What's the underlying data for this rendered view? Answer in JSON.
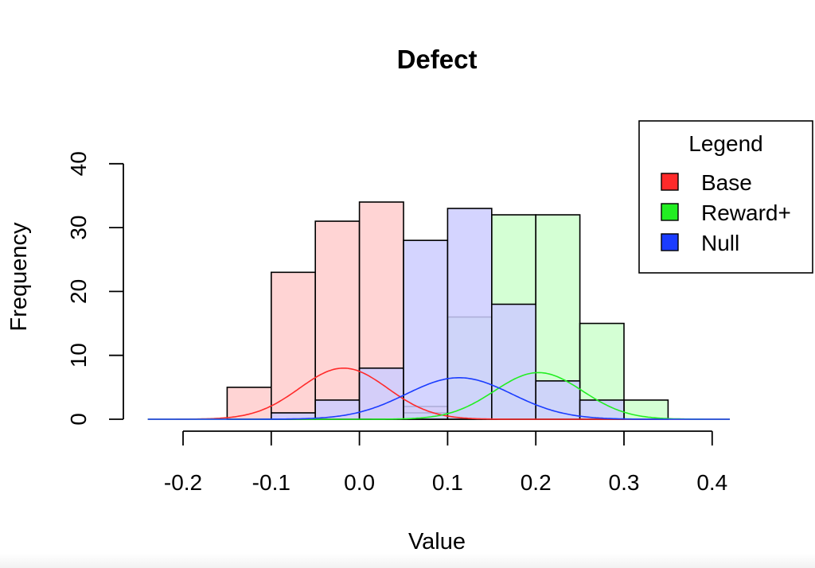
{
  "chart_data": {
    "type": "bar",
    "title": "Defect",
    "xlabel": "Value",
    "ylabel": "Frequency",
    "xlim": [
      -0.24,
      0.42
    ],
    "ylim": [
      0,
      40
    ],
    "x_ticks": [
      -0.2,
      -0.1,
      0.0,
      0.1,
      0.2,
      0.3,
      0.4
    ],
    "x_tick_labels": [
      "-0.2",
      "-0.1",
      "0.0",
      "0.1",
      "0.2",
      "0.3",
      "0.4"
    ],
    "y_ticks": [
      0,
      10,
      20,
      30,
      40
    ],
    "y_tick_labels": [
      "0",
      "10",
      "20",
      "30",
      "40"
    ],
    "bin_width": 0.05,
    "series": [
      {
        "name": "Base",
        "color": "#ff2a2a",
        "fill": "#ffcccc",
        "bins": [
          {
            "start": -0.15,
            "count": 5
          },
          {
            "start": -0.1,
            "count": 23
          },
          {
            "start": -0.05,
            "count": 31
          },
          {
            "start": 0.0,
            "count": 34
          },
          {
            "start": 0.05,
            "count": 2
          }
        ],
        "density": {
          "mean": -0.018,
          "sd": 0.05,
          "peak": 8
        }
      },
      {
        "name": "Reward+",
        "color": "#22ee22",
        "fill": "#ccffcc",
        "bins": [
          {
            "start": 0.05,
            "count": 1
          },
          {
            "start": 0.1,
            "count": 16
          },
          {
            "start": 0.15,
            "count": 32
          },
          {
            "start": 0.2,
            "count": 32
          },
          {
            "start": 0.25,
            "count": 15
          },
          {
            "start": 0.3,
            "count": 3
          }
        ],
        "density": {
          "mean": 0.203,
          "sd": 0.05,
          "peak": 7.3
        }
      },
      {
        "name": "Null",
        "color": "#1a3cff",
        "fill": "#ccccff",
        "bins": [
          {
            "start": -0.1,
            "count": 1
          },
          {
            "start": -0.05,
            "count": 3
          },
          {
            "start": 0.0,
            "count": 8
          },
          {
            "start": 0.05,
            "count": 28
          },
          {
            "start": 0.1,
            "count": 33
          },
          {
            "start": 0.15,
            "count": 18
          },
          {
            "start": 0.2,
            "count": 6
          },
          {
            "start": 0.25,
            "count": 3
          }
        ],
        "density": {
          "mean": 0.113,
          "sd": 0.06,
          "peak": 6.5
        }
      }
    ],
    "legend": {
      "title": "Legend",
      "position": "top-right",
      "entries": [
        "Base",
        "Reward+",
        "Null"
      ]
    }
  }
}
